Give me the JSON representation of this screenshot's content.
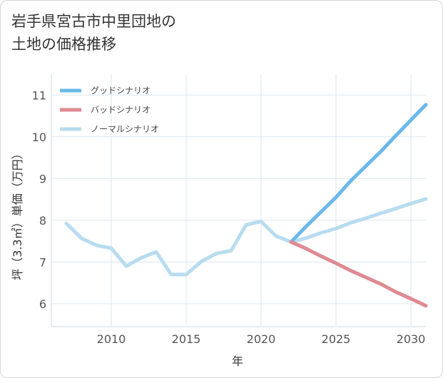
{
  "chart_data": {
    "type": "line",
    "title": {
      "line1": "岩手県宮古市中里団地の",
      "line2": "土地の価格推移"
    },
    "xlabel": "年",
    "ylabel": "坪（3.3㎡）単価（万円）",
    "xlim": [
      2006,
      2031
    ],
    "ylim": [
      5.45,
      11.5
    ],
    "x_ticks": [
      2010,
      2015,
      2020,
      2025,
      2030
    ],
    "y_ticks": [
      6,
      7,
      8,
      9,
      10,
      11
    ],
    "grid": true,
    "legend_position": "top-left",
    "series": [
      {
        "name": "グッドシナリオ",
        "color": "#6bb8ea",
        "x": [
          2022,
          2023,
          2024,
          2025,
          2026,
          2027,
          2028,
          2029,
          2030,
          2031
        ],
        "y": [
          7.48,
          7.85,
          8.2,
          8.55,
          8.95,
          9.3,
          9.65,
          10.03,
          10.4,
          10.77
        ]
      },
      {
        "name": "バッドシナリオ",
        "color": "#de8a92",
        "x": [
          2022,
          2023,
          2024,
          2025,
          2026,
          2027,
          2028,
          2029,
          2030,
          2031
        ],
        "y": [
          7.48,
          7.32,
          7.14,
          6.97,
          6.79,
          6.63,
          6.47,
          6.28,
          6.12,
          5.95
        ]
      },
      {
        "name": "ノーマルシナリオ",
        "color": "#b8dcef",
        "x": [
          2007,
          2008,
          2009,
          2010,
          2011,
          2012,
          2013,
          2014,
          2015,
          2016,
          2017,
          2018,
          2019,
          2020,
          2021,
          2022,
          2023,
          2024,
          2025,
          2026,
          2027,
          2028,
          2029,
          2030,
          2031
        ],
        "y": [
          7.92,
          7.57,
          7.4,
          7.33,
          6.9,
          7.1,
          7.24,
          6.7,
          6.7,
          7.01,
          7.2,
          7.27,
          7.89,
          7.97,
          7.62,
          7.48,
          7.57,
          7.7,
          7.8,
          7.94,
          8.05,
          8.17,
          8.28,
          8.4,
          8.51
        ]
      }
    ]
  }
}
